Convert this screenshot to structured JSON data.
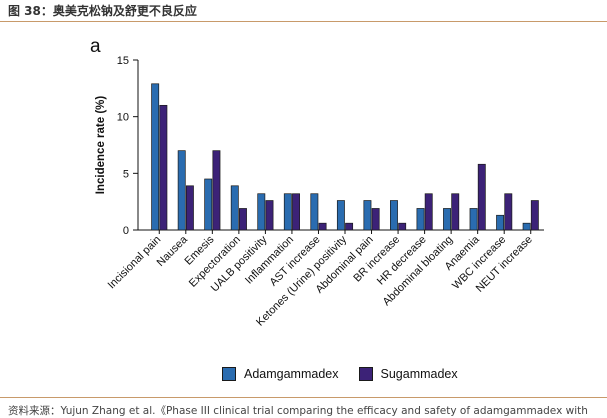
{
  "figure_title": "图 38：奥美克松钠及舒更不良反应",
  "source_text": "资料来源：Yujun Zhang et al.《Phase III clinical trial comparing the efficacy and safety of adamgammadex with",
  "chart_data": {
    "type": "bar",
    "panel_letter": "a",
    "title": "",
    "xlabel": "",
    "ylabel": "Incidence rate (%)",
    "ylim": [
      0,
      15
    ],
    "yticks": [
      0,
      5,
      10,
      15
    ],
    "categories": [
      "Incisional pain",
      "Nausea",
      "Emesis",
      "Expectoration",
      "UALB positivity",
      "Inflammation",
      "AST increase",
      "Ketones (Urine) positivity",
      "Abdominal pain",
      "BR increase",
      "HR decrease",
      "Abdominal bloating",
      "Anaemia",
      "WBC increase",
      "NEUT increase"
    ],
    "series": [
      {
        "name": "Adamgammadex",
        "color": "#2a6cb0",
        "values": [
          12.9,
          7.0,
          4.5,
          3.9,
          3.2,
          3.2,
          3.2,
          2.6,
          2.6,
          2.6,
          1.9,
          1.9,
          1.9,
          1.3,
          0.6
        ]
      },
      {
        "name": "Sugammadex",
        "color": "#3c2277",
        "values": [
          11.0,
          3.9,
          7.0,
          1.9,
          2.6,
          3.2,
          0.6,
          0.6,
          1.9,
          0.6,
          3.2,
          3.2,
          5.8,
          3.2,
          2.6
        ]
      }
    ],
    "legend_position": "bottom"
  }
}
